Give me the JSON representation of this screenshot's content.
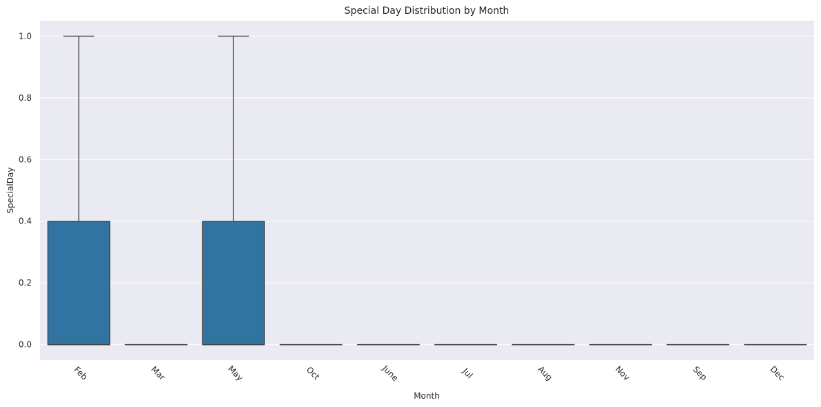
{
  "chart_data": {
    "type": "box",
    "title": "Special Day Distribution by Month",
    "xlabel": "Month",
    "ylabel": "SpecialDay",
    "ylim": [
      -0.05,
      1.05
    ],
    "yticks": [
      0.0,
      0.2,
      0.4,
      0.6,
      0.8,
      1.0
    ],
    "ytick_labels": [
      "0.0",
      "0.2",
      "0.4",
      "0.6",
      "0.8",
      "1.0"
    ],
    "grid": true,
    "categories": [
      "Feb",
      "Mar",
      "May",
      "Oct",
      "June",
      "Jul",
      "Aug",
      "Nov",
      "Sep",
      "Dec"
    ],
    "boxes": [
      {
        "min": 0.0,
        "q1": 0.0,
        "median": 0.0,
        "q3": 0.4,
        "max": 1.0
      },
      {
        "min": 0.0,
        "q1": 0.0,
        "median": 0.0,
        "q3": 0.0,
        "max": 0.0
      },
      {
        "min": 0.0,
        "q1": 0.0,
        "median": 0.0,
        "q3": 0.4,
        "max": 1.0
      },
      {
        "min": 0.0,
        "q1": 0.0,
        "median": 0.0,
        "q3": 0.0,
        "max": 0.0
      },
      {
        "min": 0.0,
        "q1": 0.0,
        "median": 0.0,
        "q3": 0.0,
        "max": 0.0
      },
      {
        "min": 0.0,
        "q1": 0.0,
        "median": 0.0,
        "q3": 0.0,
        "max": 0.0
      },
      {
        "min": 0.0,
        "q1": 0.0,
        "median": 0.0,
        "q3": 0.0,
        "max": 0.0
      },
      {
        "min": 0.0,
        "q1": 0.0,
        "median": 0.0,
        "q3": 0.0,
        "max": 0.0
      },
      {
        "min": 0.0,
        "q1": 0.0,
        "median": 0.0,
        "q3": 0.0,
        "max": 0.0
      },
      {
        "min": 0.0,
        "q1": 0.0,
        "median": 0.0,
        "q3": 0.0,
        "max": 0.0
      }
    ],
    "colors": {
      "box_fill": "#3274a1",
      "box_edge": "#3f3f3f",
      "plot_background": "#eaeaf2",
      "grid": "#ffffff",
      "text": "#262626"
    }
  }
}
